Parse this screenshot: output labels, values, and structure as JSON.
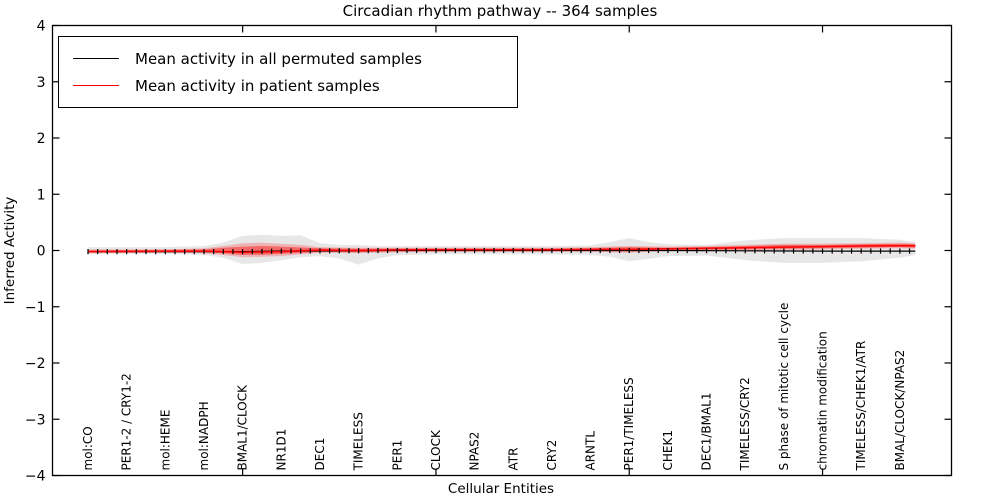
{
  "title": "Circadian rhythm pathway -- 364 samples",
  "legend": {
    "items": [
      {
        "name": "permuted-mean",
        "label": "Mean activity in all permuted samples",
        "color": "#000000"
      },
      {
        "name": "patient-mean",
        "label": "Mean activity in patient samples",
        "color": "#ff0000"
      }
    ]
  },
  "chart_data": {
    "type": "line",
    "title": "Circadian rhythm pathway -- 364 samples",
    "xlabel": "Cellular Entities",
    "ylabel": "Inferred Activity",
    "ylim": [
      -4,
      4
    ],
    "yticks": [
      4,
      3,
      2,
      1,
      0,
      -1,
      -2,
      -3,
      -4
    ],
    "grid": false,
    "legend_position": "upper left",
    "categories": [
      "mol:CO",
      "PER1-2 / CRY1-2",
      "mol:HEME",
      "mol:NADPH",
      "BMAL1/CLOCK",
      "NR1D1",
      "DEC1",
      "TIMELESS",
      "PER1",
      "CLOCK",
      "NPAS2",
      "ATR",
      "CRY2",
      "ARNTL",
      "PER1/TIMELESS",
      "CHEK1",
      "DEC1/BMAL1",
      "TIMELESS/CRY2",
      "S phase of mitotic cell cycle",
      "chromatin modification",
      "TIMELESS/CHEK1/ATR",
      "BMAL/CLOCK/NPAS2"
    ],
    "xtick_indices": [
      4,
      9,
      14,
      19
    ],
    "x_range": [
      0,
      21.4
    ],
    "marker_step": 0.25,
    "bands": [
      {
        "name": "permuted-range-band",
        "color": "#e7e7e7",
        "opacity": 1,
        "points": [
          [
            0,
            -0.06,
            0.06
          ],
          [
            1,
            -0.06,
            0.06
          ],
          [
            2,
            -0.06,
            0.06
          ],
          [
            3,
            -0.08,
            0.08
          ],
          [
            3.5,
            -0.13,
            0.14
          ],
          [
            4,
            -0.24,
            0.26
          ],
          [
            4.5,
            -0.22,
            0.28
          ],
          [
            5,
            -0.17,
            0.26
          ],
          [
            5.5,
            -0.12,
            0.27
          ],
          [
            6,
            -0.1,
            0.13
          ],
          [
            6.5,
            -0.14,
            0.1
          ],
          [
            7,
            -0.25,
            0.1
          ],
          [
            7.5,
            -0.14,
            0.08
          ],
          [
            8,
            -0.08,
            0.08
          ],
          [
            9,
            -0.07,
            0.08
          ],
          [
            10,
            -0.07,
            0.08
          ],
          [
            11,
            -0.07,
            0.08
          ],
          [
            12,
            -0.07,
            0.08
          ],
          [
            13,
            -0.08,
            0.09
          ],
          [
            13.5,
            -0.11,
            0.15
          ],
          [
            14,
            -0.19,
            0.22
          ],
          [
            14.5,
            -0.15,
            0.15
          ],
          [
            15,
            -0.1,
            0.11
          ],
          [
            16,
            -0.09,
            0.1
          ],
          [
            16.5,
            -0.13,
            0.14
          ],
          [
            17,
            -0.17,
            0.18
          ],
          [
            18,
            -0.22,
            0.22
          ],
          [
            19,
            -0.22,
            0.22
          ],
          [
            20,
            -0.19,
            0.22
          ],
          [
            21,
            -0.13,
            0.19
          ],
          [
            21.4,
            -0.08,
            0.15
          ]
        ]
      },
      {
        "name": "patient-range-outer-band",
        "color": "#ff0000",
        "opacity": 0.22,
        "points": [
          [
            0,
            -0.05,
            0.02
          ],
          [
            1,
            -0.04,
            0.02
          ],
          [
            2,
            -0.04,
            0.02
          ],
          [
            3,
            -0.05,
            0.04
          ],
          [
            3.5,
            -0.08,
            0.08
          ],
          [
            4,
            -0.12,
            0.13
          ],
          [
            4.5,
            -0.11,
            0.14
          ],
          [
            5,
            -0.1,
            0.12
          ],
          [
            5.5,
            -0.07,
            0.1
          ],
          [
            6,
            -0.04,
            0.06
          ],
          [
            7,
            -0.05,
            0.05
          ],
          [
            8,
            -0.03,
            0.05
          ],
          [
            9,
            -0.025,
            0.05
          ],
          [
            10,
            -0.025,
            0.05
          ],
          [
            11,
            -0.025,
            0.05
          ],
          [
            12,
            -0.02,
            0.05
          ],
          [
            13,
            -0.02,
            0.06
          ],
          [
            14,
            -0.04,
            0.08
          ],
          [
            15,
            -0.01,
            0.07
          ],
          [
            16,
            0.0,
            0.08
          ],
          [
            17,
            0.0,
            0.1
          ],
          [
            18,
            0.01,
            0.12
          ],
          [
            19,
            0.02,
            0.12
          ],
          [
            20,
            0.03,
            0.13
          ],
          [
            21,
            0.04,
            0.14
          ],
          [
            21.4,
            0.03,
            0.13
          ]
        ]
      },
      {
        "name": "patient-range-inner-band",
        "color": "#ff0000",
        "opacity": 0.42,
        "points": [
          [
            0,
            -0.035,
            0.005
          ],
          [
            2,
            -0.03,
            0.01
          ],
          [
            3,
            -0.03,
            0.02
          ],
          [
            3.5,
            -0.05,
            0.05
          ],
          [
            4,
            -0.08,
            0.07
          ],
          [
            4.5,
            -0.075,
            0.08
          ],
          [
            5,
            -0.06,
            0.07
          ],
          [
            6,
            -0.025,
            0.04
          ],
          [
            7,
            -0.03,
            0.03
          ],
          [
            8,
            -0.015,
            0.035
          ],
          [
            10,
            -0.01,
            0.035
          ],
          [
            12,
            -0.01,
            0.035
          ],
          [
            13,
            -0.01,
            0.04
          ],
          [
            14,
            -0.02,
            0.06
          ],
          [
            15,
            0.0,
            0.05
          ],
          [
            16,
            0.01,
            0.06
          ],
          [
            17,
            0.02,
            0.08
          ],
          [
            18,
            0.03,
            0.1
          ],
          [
            19,
            0.04,
            0.1
          ],
          [
            20,
            0.05,
            0.11
          ],
          [
            21,
            0.06,
            0.12
          ],
          [
            21.4,
            0.05,
            0.11
          ]
        ]
      }
    ],
    "series": [
      {
        "name": "Mean activity in all permuted samples",
        "color": "#000000",
        "width": 1.2,
        "markers": true,
        "points": [
          [
            0,
            -0.02
          ],
          [
            2,
            -0.02
          ],
          [
            4,
            -0.02
          ],
          [
            5,
            -0.01
          ],
          [
            8,
            0.0
          ],
          [
            12,
            0.0
          ],
          [
            15,
            0.0
          ],
          [
            17,
            -0.005
          ],
          [
            19,
            -0.01
          ],
          [
            21.4,
            -0.01
          ]
        ]
      },
      {
        "name": "Mean activity in patient samples",
        "color": "#ff0000",
        "width": 1.5,
        "markers": false,
        "points": [
          [
            0,
            -0.02
          ],
          [
            1,
            -0.018
          ],
          [
            2,
            -0.015
          ],
          [
            3,
            -0.012
          ],
          [
            3.5,
            -0.02
          ],
          [
            4,
            -0.03
          ],
          [
            4.5,
            -0.025
          ],
          [
            5,
            -0.02
          ],
          [
            5.5,
            -0.005
          ],
          [
            6,
            0.008
          ],
          [
            7,
            0.0
          ],
          [
            8,
            0.01
          ],
          [
            9,
            0.015
          ],
          [
            10,
            0.015
          ],
          [
            11,
            0.015
          ],
          [
            12,
            0.015
          ],
          [
            13,
            0.02
          ],
          [
            14,
            0.02
          ],
          [
            15,
            0.03
          ],
          [
            16,
            0.04
          ],
          [
            17,
            0.05
          ],
          [
            18,
            0.06
          ],
          [
            19,
            0.07
          ],
          [
            20,
            0.08
          ],
          [
            21,
            0.085
          ],
          [
            21.4,
            0.085
          ]
        ]
      }
    ]
  }
}
